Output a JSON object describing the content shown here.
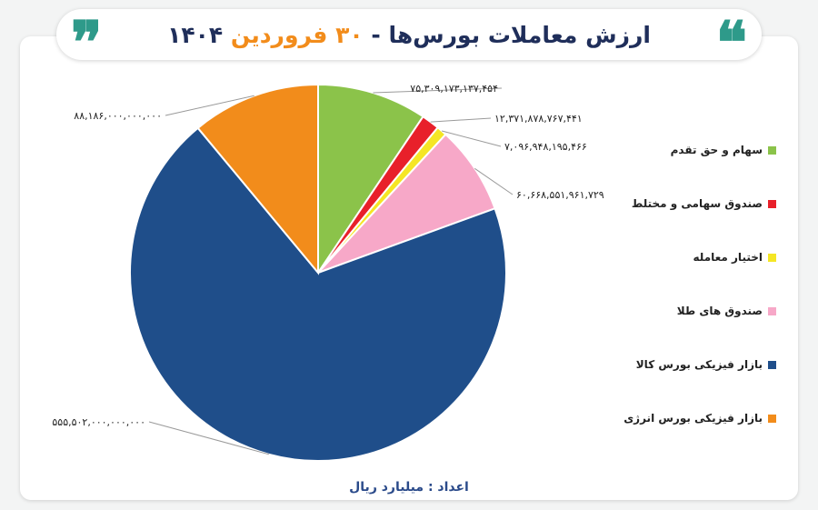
{
  "title": {
    "main": "ارزش معاملات بورس‌ها - ",
    "accent": "۳۰ فروردین",
    "year": " ۱۴۰۴",
    "quote_open": "❝",
    "quote_close": "❞"
  },
  "footer": {
    "label": "اعداد : میلیارد ریال"
  },
  "chart_data": {
    "type": "pie",
    "title": "ارزش معاملات بورس‌ها - ۳۰ فروردین ۱۴۰۴",
    "unit": "اعداد : میلیارد ریال",
    "start_angle_deg": 0,
    "slices": [
      {
        "name": "سهام و حق تقدم",
        "value": 75309173137454,
        "label": "۷۵,۳۰۹,۱۷۳,۱۳۷,۴۵۴",
        "color": "#8bc34a"
      },
      {
        "name": "صندوق سهامی و مختلط",
        "value": 12371878767441,
        "label": "۱۲,۳۷۱,۸۷۸,۷۶۷,۴۴۱",
        "color": "#e8202a"
      },
      {
        "name": "اختیار معامله",
        "value": 7096948195466,
        "label": "۷,۰۹۶,۹۴۸,۱۹۵,۴۶۶",
        "color": "#f5e625"
      },
      {
        "name": "صندوق های طلا",
        "value": 60668551961729,
        "label": "۶۰,۶۶۸,۵۵۱,۹۶۱,۷۲۹",
        "color": "#f7a8c8"
      },
      {
        "name": "بازار فیزیکی بورس کالا",
        "value": 555502000000000,
        "label": "۵۵۵,۵۰۲,۰۰۰,۰۰۰,۰۰۰",
        "color": "#1f4e8a"
      },
      {
        "name": "بازار فیزیکی بورس انرژی",
        "value": 88186000000000,
        "label": "۸۸,۱۸۶,۰۰۰,۰۰۰,۰۰۰",
        "color": "#f28c1b"
      }
    ],
    "legend_position": "right"
  }
}
